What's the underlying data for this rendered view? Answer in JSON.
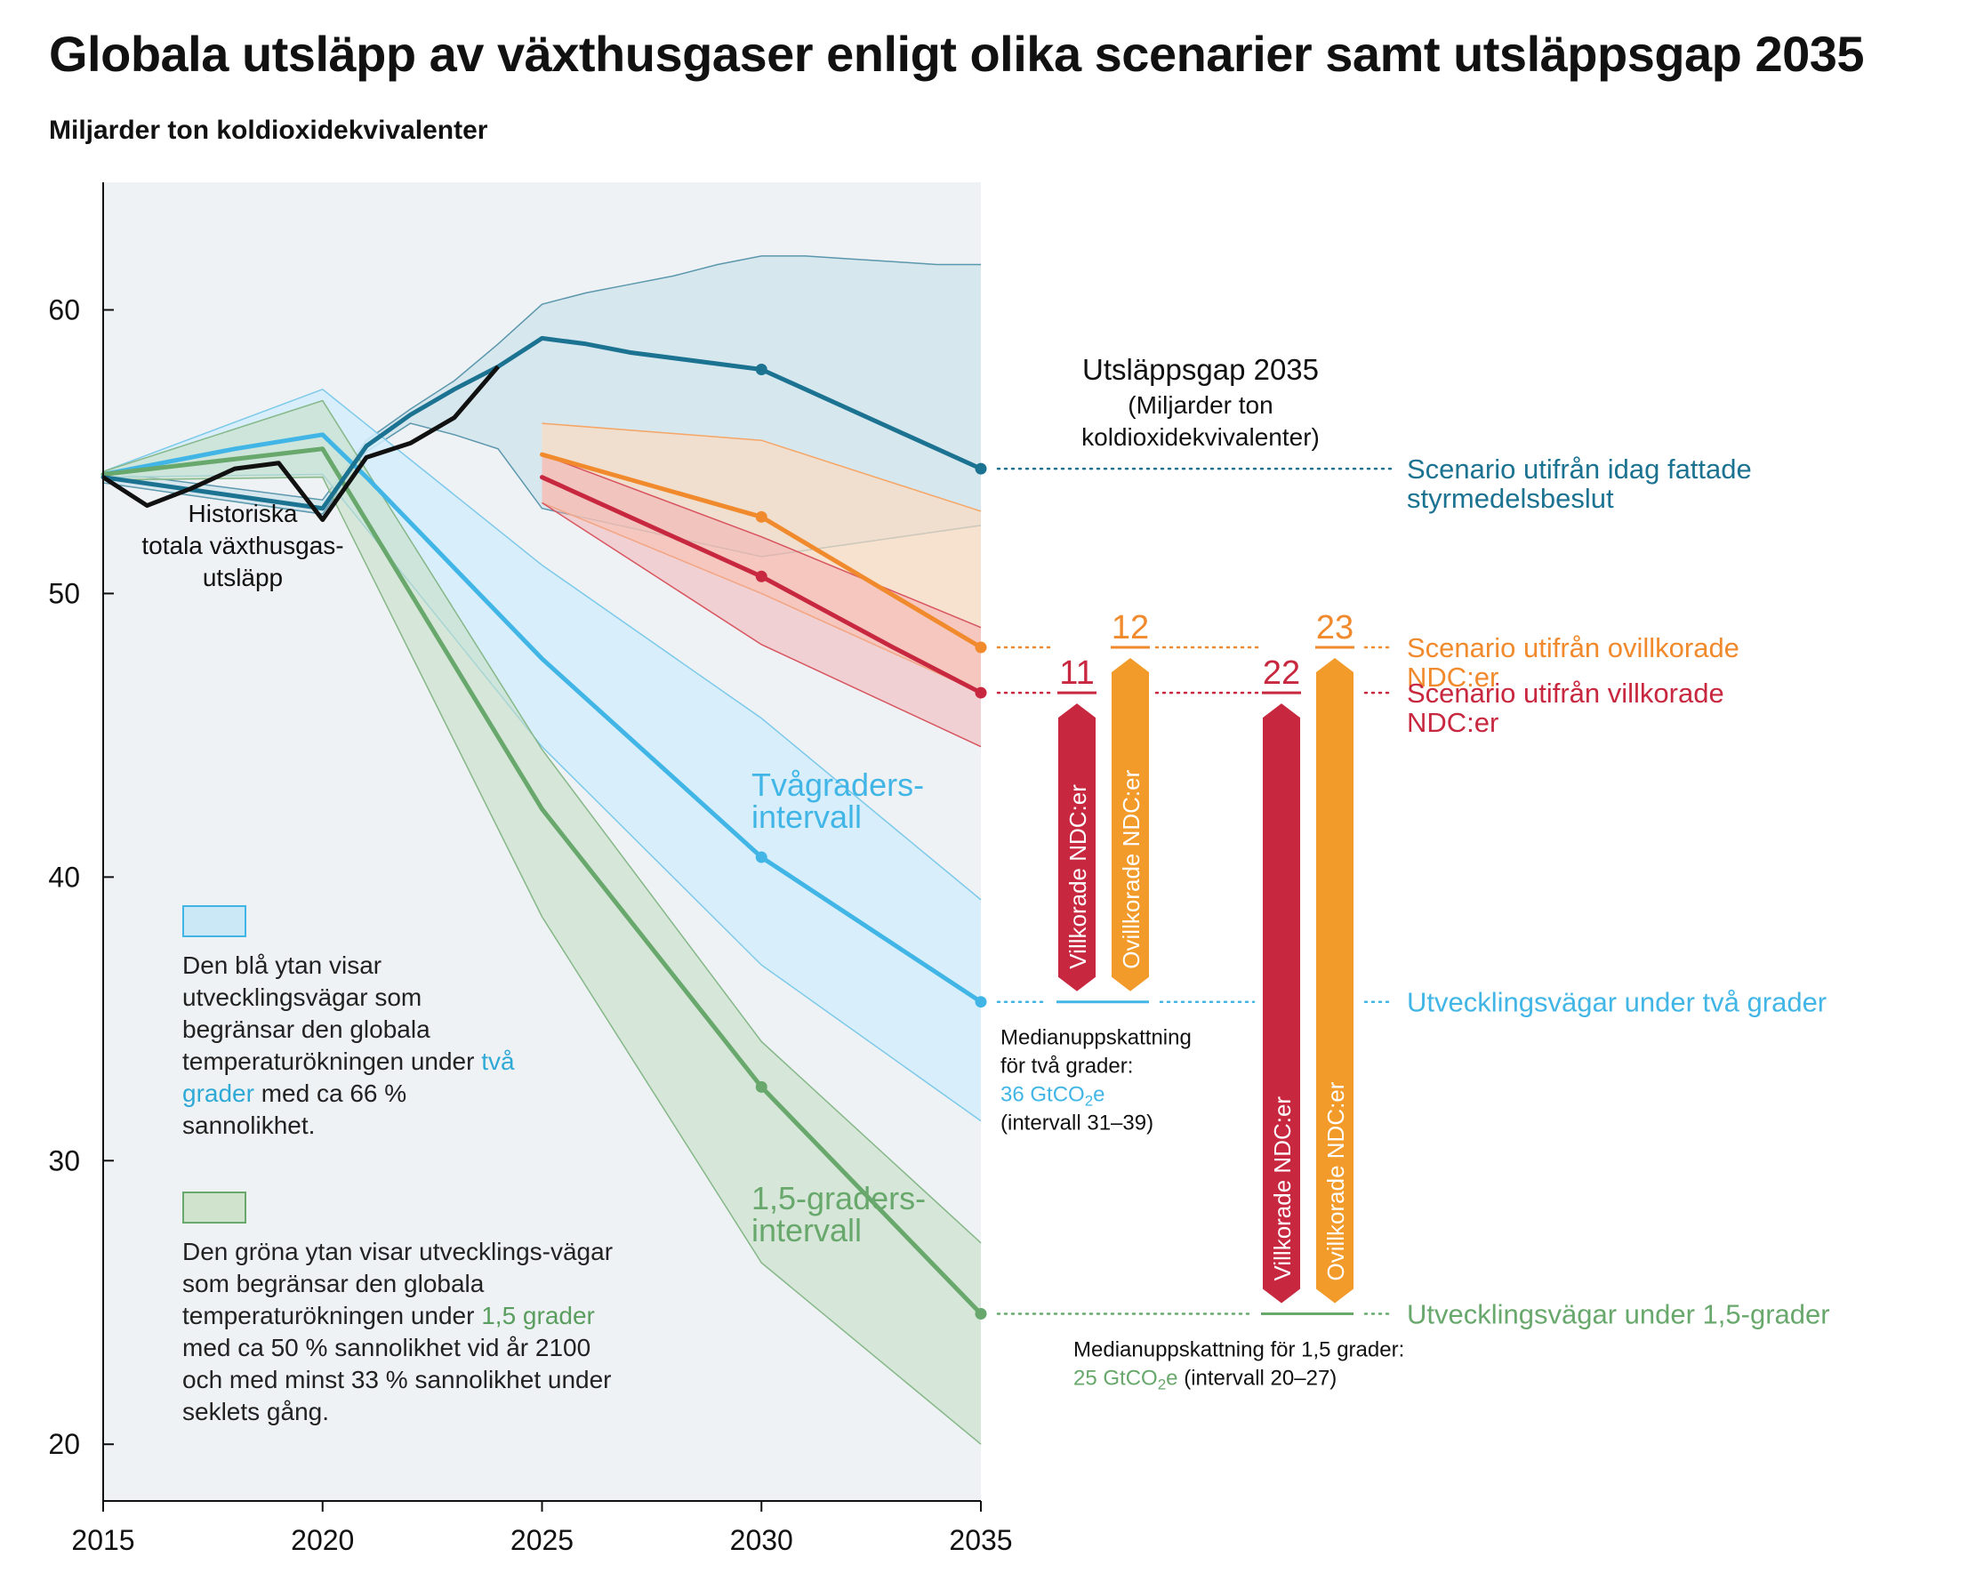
{
  "title": "Globala utsläpp av växthusgaser enligt olika scenarier samt utsläppsgap 2035",
  "subtitle": "Miljarder ton koldioxidekvivalenter",
  "colors": {
    "policy": "#1b7391",
    "unconditional": "#f08a2c",
    "conditional": "#c8283f",
    "two_degree": "#41b6e6",
    "one_five": "#68a86c",
    "historical": "#111111",
    "plot_bg": "#eef2f4",
    "bar_cond": "#c8283f",
    "bar_uncond": "#f29a2a"
  },
  "chart_data": {
    "type": "line",
    "x_ticks": [
      2015,
      2020,
      2025,
      2030,
      2035
    ],
    "y_ticks": [
      20,
      30,
      40,
      50,
      60
    ],
    "xlim": [
      2015,
      2035
    ],
    "ylim": [
      18,
      64.5
    ],
    "grid": false,
    "historical": {
      "label_lines": [
        "Historiska",
        "totala växthusgas-",
        "utsläpp"
      ],
      "x": [
        2015,
        2016,
        2017,
        2018,
        2019,
        2020,
        2021,
        2022,
        2023,
        2024
      ],
      "y": [
        54.1,
        53.1,
        53.7,
        54.4,
        54.6,
        52.6,
        54.8,
        55.3,
        56.2,
        58.0
      ]
    },
    "series": [
      {
        "name": "Scenario utifrån idag fattade styrmedelsbeslut",
        "key": "policy",
        "x": [
          2015,
          2020,
          2021,
          2022,
          2023,
          2024,
          2025,
          2026,
          2027,
          2030,
          2035
        ],
        "y": [
          54.1,
          53.0,
          55.2,
          56.3,
          57.2,
          58.0,
          59.0,
          58.8,
          58.5,
          57.9,
          54.4
        ],
        "upper_x": [
          2015,
          2020,
          2021,
          2022,
          2023,
          2024,
          2025,
          2026,
          2027,
          2028,
          2029,
          2030,
          2031,
          2032,
          2033,
          2034,
          2035
        ],
        "upper_y": [
          54.3,
          53.3,
          55.4,
          56.5,
          57.5,
          58.8,
          60.2,
          60.6,
          60.9,
          61.2,
          61.6,
          61.9,
          61.9,
          61.8,
          61.7,
          61.6,
          61.6
        ],
        "lower_x": [
          2015,
          2020,
          2021,
          2022,
          2023,
          2024,
          2025,
          2030,
          2035
        ],
        "lower_y": [
          53.9,
          52.8,
          55.0,
          56.0,
          55.6,
          55.1,
          53.0,
          51.3,
          52.4
        ],
        "markers": [
          2030,
          2035
        ]
      },
      {
        "name": "Scenario utifrån ovillkorade NDC:er",
        "key": "unconditional",
        "x": [
          2025,
          2030,
          2035
        ],
        "y": [
          54.9,
          52.7,
          48.1
        ],
        "upper_x": [
          2025,
          2030,
          2035
        ],
        "upper_y": [
          56.0,
          55.4,
          52.9
        ],
        "lower_x": [
          2025,
          2030,
          2035
        ],
        "lower_y": [
          53.2,
          50.0,
          46.5
        ],
        "markers": [
          2030,
          2035
        ]
      },
      {
        "name": "Scenario utifrån villkorade NDC:er",
        "key": "conditional",
        "x": [
          2025,
          2030,
          2033,
          2035
        ],
        "y": [
          54.1,
          50.6,
          48.1,
          46.5
        ],
        "upper_x": [
          2025,
          2030,
          2035
        ],
        "upper_y": [
          54.9,
          52.0,
          48.8
        ],
        "lower_x": [
          2025,
          2030,
          2035
        ],
        "lower_y": [
          53.2,
          48.2,
          44.6
        ],
        "markers": [
          2030,
          2035
        ]
      },
      {
        "name": "Tvågraders-intervall",
        "key": "two_degree",
        "label_lines": [
          "Tvågraders-",
          "intervall"
        ],
        "x": [
          2015,
          2018,
          2020,
          2021,
          2025,
          2030,
          2035
        ],
        "y": [
          54.2,
          55.1,
          55.6,
          54.1,
          47.7,
          40.7,
          35.6
        ],
        "upper_x": [
          2015,
          2020,
          2025,
          2030,
          2035
        ],
        "upper_y": [
          54.3,
          57.2,
          51.0,
          45.6,
          39.2
        ],
        "lower_x": [
          2015,
          2020,
          2025,
          2030,
          2035
        ],
        "lower_y": [
          54.1,
          54.2,
          44.6,
          36.9,
          31.4
        ],
        "markers": [
          2030,
          2035
        ]
      },
      {
        "name": "1,5-graders-intervall",
        "key": "one_five",
        "label_lines": [
          "1,5-graders-",
          "intervall"
        ],
        "x": [
          2015,
          2020,
          2025,
          2030,
          2034,
          2035
        ],
        "y": [
          54.2,
          55.1,
          42.4,
          32.6,
          26.2,
          24.6
        ],
        "upper_x": [
          2015,
          2020,
          2025,
          2030,
          2035
        ],
        "upper_y": [
          54.3,
          56.8,
          44.5,
          34.2,
          27.1
        ],
        "lower_x": [
          2015,
          2020,
          2025,
          2030,
          2035
        ],
        "lower_y": [
          54.0,
          54.1,
          38.6,
          26.4,
          20.0
        ],
        "markers": [
          2030,
          2035
        ]
      }
    ],
    "gap_panel": {
      "title": "Utsläppsgap 2035",
      "subtitle_lines": [
        "(Miljarder ton",
        "koldioxidekvivalenter)"
      ],
      "two_degree_target": 36,
      "one_five_target": 25,
      "bars": [
        {
          "value": 11,
          "label": "Villkorade NDC:er",
          "kind": "conditional",
          "from": 35.6,
          "to": 46.5
        },
        {
          "value": 12,
          "label": "Ovillkorade NDC:er",
          "kind": "unconditional",
          "from": 35.6,
          "to": 48.1
        },
        {
          "value": 22,
          "label": "Villkorade NDC:er",
          "kind": "conditional",
          "from": 24.6,
          "to": 46.5
        },
        {
          "value": 23,
          "label": "Ovillkorade NDC:er",
          "kind": "unconditional",
          "from": 24.6,
          "to": 48.1
        }
      ],
      "right_labels": [
        {
          "lines": [
            "Scenario utifrån idag fattade",
            "styrmedelsbeslut"
          ],
          "key": "policy",
          "y": 54.4
        },
        {
          "lines": [
            "Scenario utifrån ovillkorade",
            "NDC:er"
          ],
          "key": "unconditional",
          "y": 48.1
        },
        {
          "lines": [
            "Scenario utifrån villkorade",
            "NDC:er"
          ],
          "key": "conditional",
          "y": 46.5
        },
        {
          "lines": [
            "Utvecklingsvägar under två grader"
          ],
          "key": "two_degree",
          "y": 35.6
        },
        {
          "lines": [
            "Utvecklingsvägar under 1,5-grader"
          ],
          "key": "one_five",
          "y": 24.6
        }
      ],
      "median_two": {
        "lines": [
          "Medianuppskattning",
          "för två grader:"
        ],
        "value": "36 GtCO",
        "value_sub": "2",
        "value_suffix": "e",
        "range": "(intervall 31–39)"
      },
      "median_one_five": {
        "line1": "Medianuppskattning för 1,5 grader:",
        "value": "25 GtCO",
        "value_sub": "2",
        "value_suffix": "e",
        "range": " (intervall 20–27)"
      }
    }
  },
  "legend": {
    "blue": {
      "pre": "Den blå ytan visar utvecklingsvägar som begränsar den globala temperaturökningen under ",
      "hl": "två grader",
      "post": " med ca 66 % sannolikhet."
    },
    "green": {
      "pre": "Den gröna ytan visar utvecklings-vägar som begränsar den globala temperaturökningen under ",
      "hl": "1,5 grader",
      "post": " med ca 50 % sannolikhet vid år 2100 och med minst 33 % sannolikhet under seklets gång."
    }
  }
}
